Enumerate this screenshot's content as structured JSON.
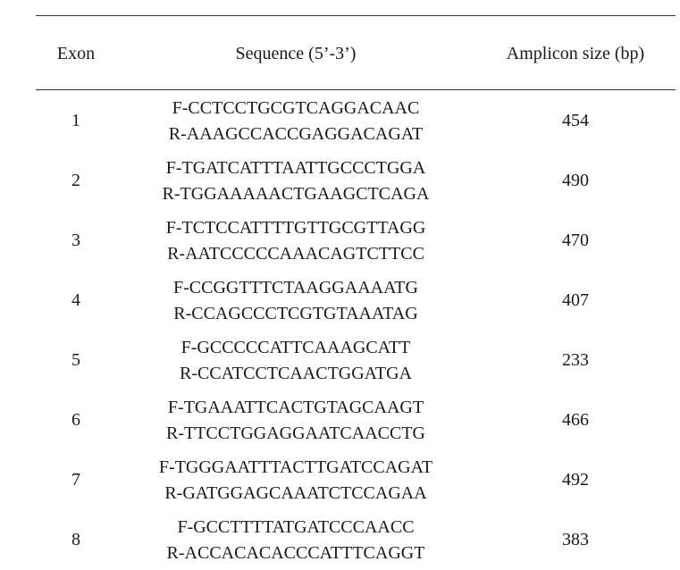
{
  "table": {
    "headers": [
      "Exon",
      "Sequence (5’-3’)",
      "Amplicon size (bp)"
    ],
    "rows": [
      {
        "exon": "1",
        "forward": "F-CCTCCTGCGTCAGGACAAC",
        "reverse": "R-AAAGCCACCGAGGACAGAT",
        "size": "454"
      },
      {
        "exon": "2",
        "forward": "F-TGATCATTTAATTGCCCTGGA",
        "reverse": "R-TGGAAAAACTGAAGCTCAGA",
        "size": "490"
      },
      {
        "exon": "3",
        "forward": "F-TCTCCATTTTGTTGCGTTAGG",
        "reverse": "R-AATCCCCCAAACAGTCTTCC",
        "size": "470"
      },
      {
        "exon": "4",
        "forward": "F-CCGGTTTCTAAGGAAAATG",
        "reverse": "R-CCAGCCCTCGTGTAAATAG",
        "size": "407"
      },
      {
        "exon": "5",
        "forward": "F-GCCCCCATTCAAAGCATT",
        "reverse": "R-CCATCCTCAACTGGATGA",
        "size": "233"
      },
      {
        "exon": "6",
        "forward": "F-TGAAATTCACTGTAGCAAGT",
        "reverse": "R-TTCCTGGAGGAATCAACCTG",
        "size": "466"
      },
      {
        "exon": "7",
        "forward": "F-TGGGAATTTACTTGATCCAGAT",
        "reverse": "R-GATGGAGCAAATCTCCAGAA",
        "size": "492"
      },
      {
        "exon": "8",
        "forward": "F-GCCTTTTATGATCCCAACC",
        "reverse": "R-ACCACACACCCATTTCAGGT",
        "size": "383"
      }
    ]
  }
}
